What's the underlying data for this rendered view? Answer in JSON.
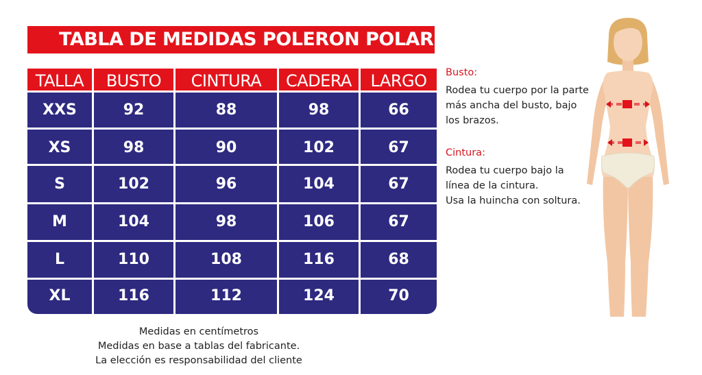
{
  "title": "TABLA DE MEDIDAS POLERON POLAR",
  "table": {
    "headers": [
      "TALLA",
      "BUSTO",
      "CINTURA",
      "CADERA",
      "LARGO"
    ],
    "rows": [
      [
        "XXS",
        "92",
        "88",
        "98",
        "66"
      ],
      [
        "XS",
        "98",
        "90",
        "102",
        "67"
      ],
      [
        "S",
        "102",
        "96",
        "104",
        "67"
      ],
      [
        "M",
        "104",
        "98",
        "106",
        "67"
      ],
      [
        "L",
        "110",
        "108",
        "116",
        "68"
      ],
      [
        "XL",
        "116",
        "112",
        "124",
        "70"
      ]
    ]
  },
  "notes": [
    "Medidas en centímetros",
    "Medidas en base a tablas del fabricante.",
    "La elección es responsabilidad del cliente"
  ],
  "instructions": {
    "busto": {
      "heading": "Busto:",
      "lines": [
        "Rodea tu cuerpo por la parte",
        "más ancha del busto, bajo",
        "los brazos."
      ]
    },
    "cintura": {
      "heading": "Cintura:",
      "lines": [
        "Rodea tu cuerpo bajo la",
        "línea de la cintura.",
        "Usa la huincha con soltura."
      ]
    }
  },
  "colors": {
    "accent_red": "#e3131b",
    "table_blue": "#2e2a80",
    "skin": "#f6d3b6",
    "hair": "#e0b06a"
  }
}
